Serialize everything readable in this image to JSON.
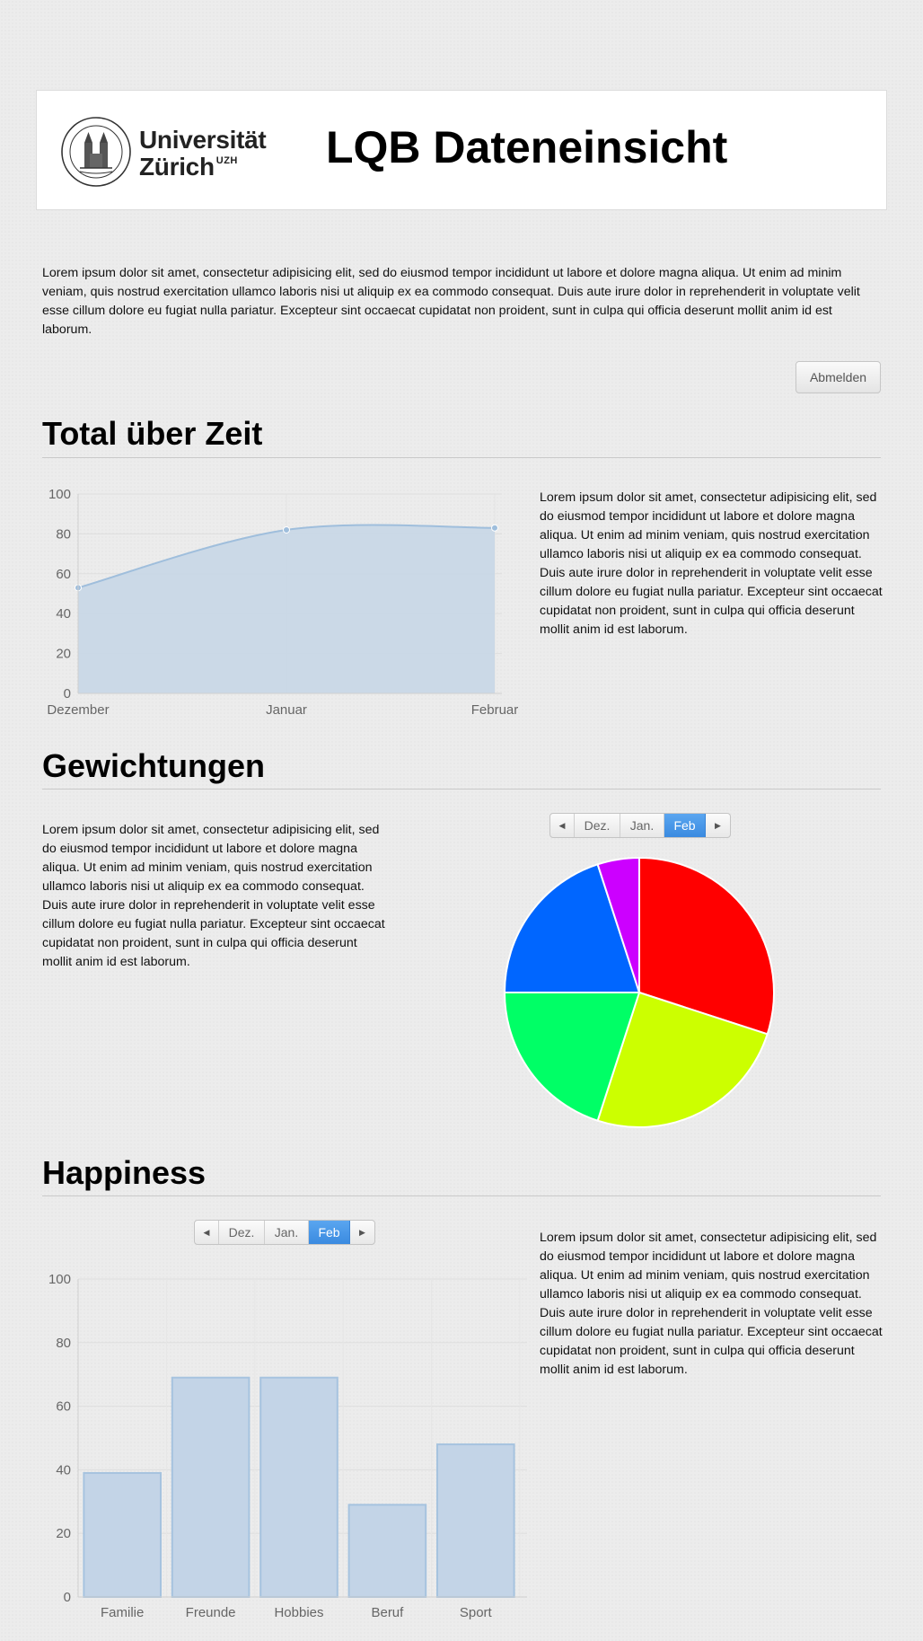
{
  "header": {
    "logo_line1": "Universität",
    "logo_line2": "Zürich",
    "logo_sup": "UZH",
    "title": "LQB Dateneinsicht"
  },
  "intro_text": "Lorem ipsum dolor sit amet, consectetur adipisicing elit, sed do eiusmod tempor incididunt ut labore et dolore magna aliqua. Ut enim ad minim veniam, quis nostrud exercitation ullamco laboris nisi ut aliquip ex ea commodo consequat. Duis aute irure dolor in reprehenderit in voluptate velit esse cillum dolore eu fugiat nulla pariatur. Excepteur sint occaecat cupidatat non proident, sunt in culpa qui officia deserunt mollit anim id est laborum.",
  "logout_label": "Abmelden",
  "sections": {
    "total": {
      "title": "Total über Zeit",
      "text": "Lorem ipsum dolor sit amet, consectetur adipisicing elit, sed do eiusmod tempor incididunt ut labore et dolore magna aliqua. Ut enim ad minim veniam, quis nostrud exercitation ullamco laboris nisi ut aliquip ex ea commodo consequat. Duis aute irure dolor in reprehenderit in voluptate velit esse cillum dolore eu fugiat nulla pariatur. Excepteur sint occaecat cupidatat non proident, sunt in culpa qui officia deserunt mollit anim id est laborum."
    },
    "weights": {
      "title": "Gewichtungen",
      "text": "Lorem ipsum dolor sit amet, consectetur adipisicing elit, sed do eiusmod tempor incididunt ut labore et dolore magna aliqua. Ut enim ad minim veniam, quis nostrud exercitation ullamco laboris nisi ut aliquip ex ea commodo consequat. Duis aute irure dolor in reprehenderit in voluptate velit esse cillum dolore eu fugiat nulla pariatur. Excepteur sint occaecat cupidatat non proident, sunt in culpa qui officia deserunt mollit anim id est laborum."
    },
    "happiness": {
      "title": "Happiness",
      "text": "Lorem ipsum dolor sit amet, consectetur adipisicing elit, sed do eiusmod tempor incididunt ut labore et dolore magna aliqua. Ut enim ad minim veniam, quis nostrud exercitation ullamco laboris nisi ut aliquip ex ea commodo consequat. Duis aute irure dolor in reprehenderit in voluptate velit esse cillum dolore eu fugiat nulla pariatur. Excepteur sint occaecat cupidatat non proident, sunt in culpa qui officia deserunt mollit anim id est laborum."
    }
  },
  "month_selector": {
    "prev_icon": "caret-left-icon",
    "next_icon": "caret-right-icon",
    "months": [
      "Dez.",
      "Jan.",
      "Feb"
    ],
    "active": "Feb",
    "active_color": "#4a9be8"
  },
  "chart_data": [
    {
      "type": "area",
      "categories": [
        "Dezember",
        "Januar",
        "Februar"
      ],
      "values": [
        53,
        82,
        83
      ],
      "ylim": [
        0,
        100
      ],
      "yticks": [
        0,
        20,
        40,
        60,
        80,
        100
      ],
      "grid": true,
      "smooth": true,
      "fill_color": "#c6d6e6",
      "line_color": "#9fbedc"
    },
    {
      "type": "pie",
      "values": [
        30,
        25,
        20,
        20,
        5
      ],
      "colors": [
        "#ff0000",
        "#ccff00",
        "#00ff66",
        "#0066ff",
        "#cc00ff"
      ]
    },
    {
      "type": "bar",
      "categories": [
        "Familie",
        "Freunde",
        "Hobbies",
        "Beruf",
        "Sport"
      ],
      "values": [
        39,
        69,
        69,
        29,
        48
      ],
      "ylim": [
        0,
        100
      ],
      "yticks": [
        0,
        20,
        40,
        60,
        80,
        100
      ],
      "grid": true,
      "bar_color": "#c3d4e7",
      "bar_border": "#a6c3df"
    }
  ]
}
